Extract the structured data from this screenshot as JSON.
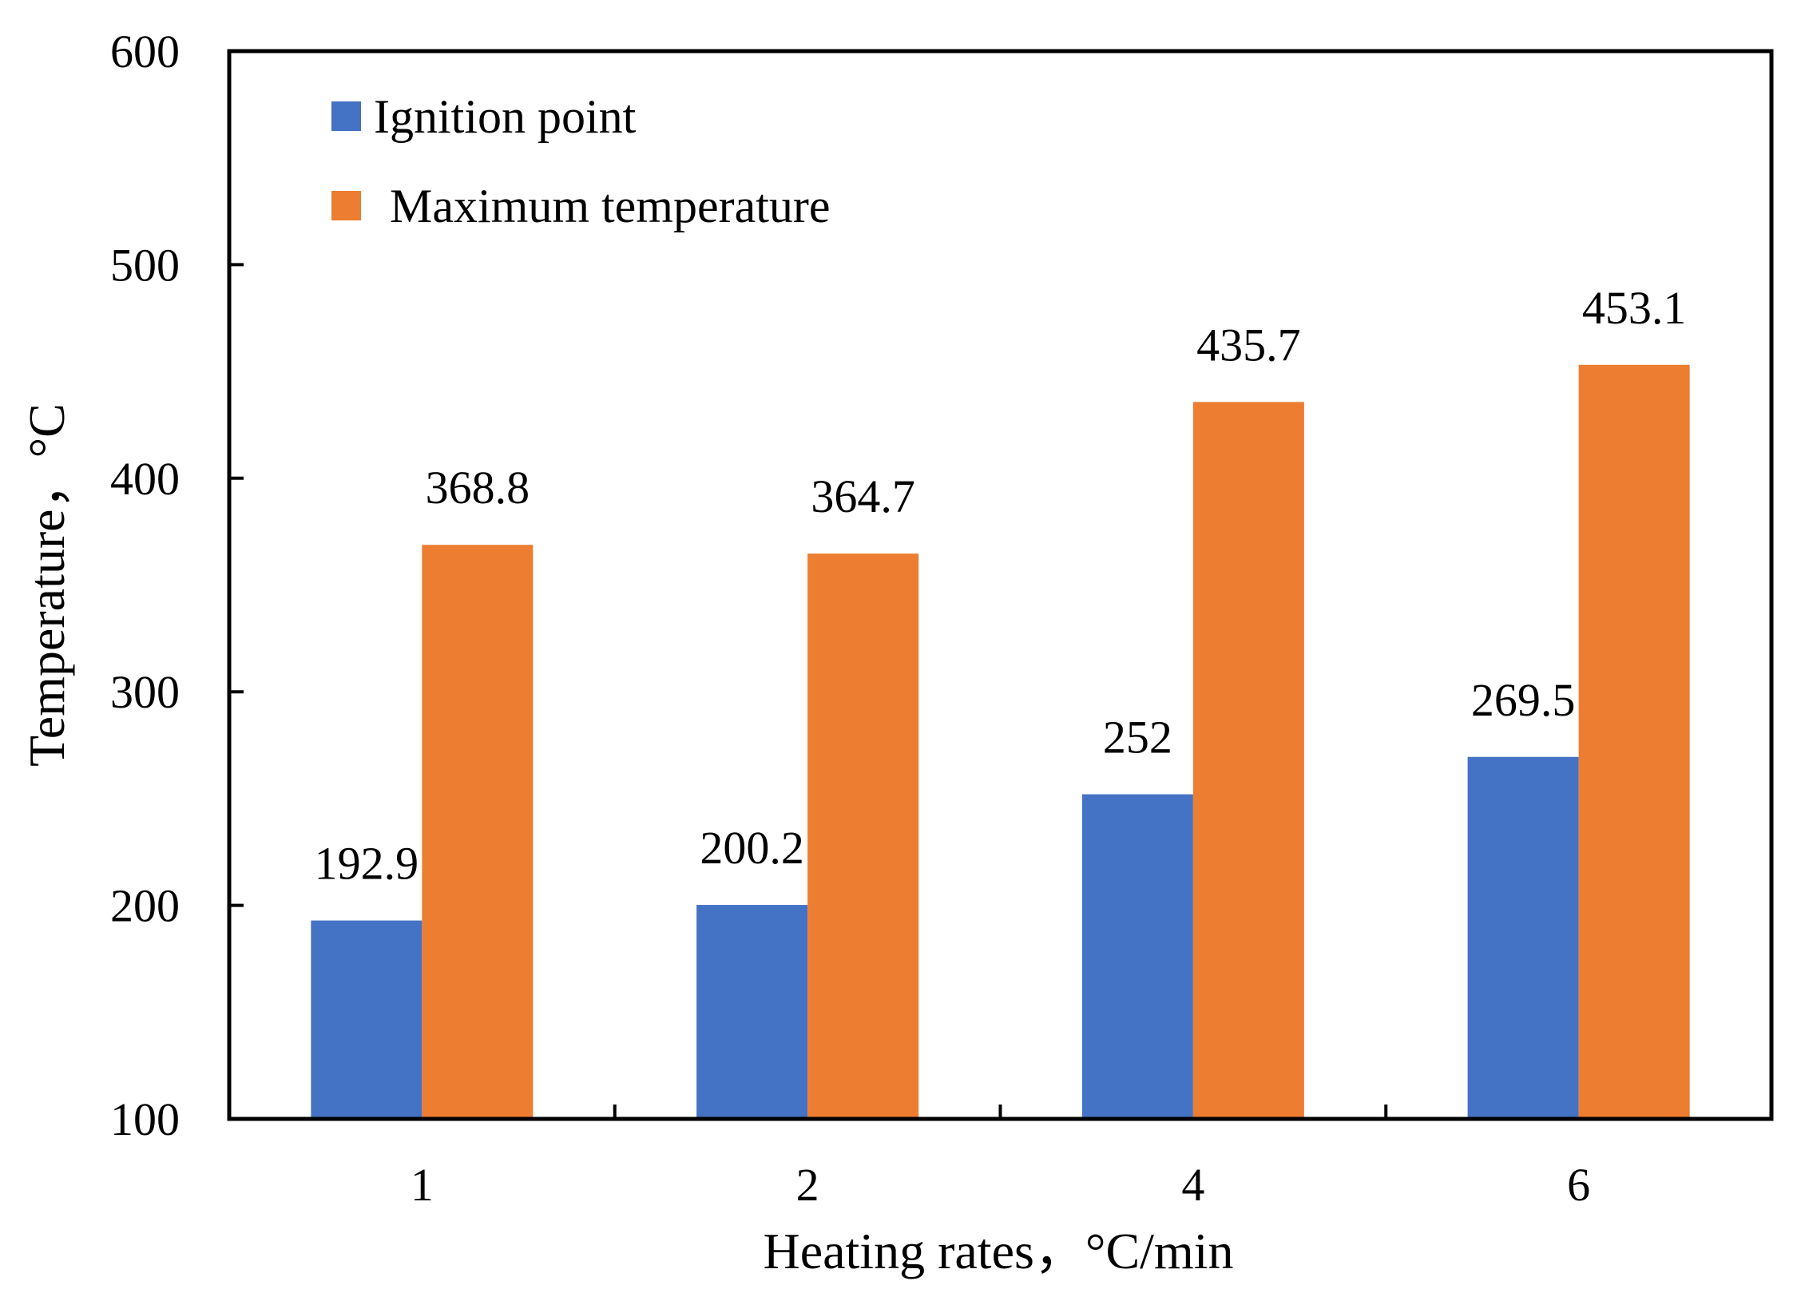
{
  "chart_data": {
    "type": "bar",
    "categories": [
      "1",
      "2",
      "4",
      "6"
    ],
    "series": [
      {
        "name": "Ignition point",
        "values": [
          192.9,
          200.2,
          252,
          269.5
        ],
        "labels": [
          "192.9",
          "200.2",
          "252",
          "269.5"
        ],
        "color": "#4472C4"
      },
      {
        "name": "Maximum temperature",
        "values": [
          368.8,
          364.7,
          435.7,
          453.1
        ],
        "labels": [
          "368.8",
          "364.7",
          "435.7",
          "453.1"
        ],
        "color": "#ED7D31"
      }
    ],
    "xlabel": "Heating rates，°C/min",
    "ylabel": "Temperature，°C",
    "ylim": [
      100,
      600
    ],
    "yticks": [
      "100",
      "200",
      "300",
      "400",
      "500",
      "600"
    ],
    "grid": false,
    "legend_position": "top-left"
  }
}
